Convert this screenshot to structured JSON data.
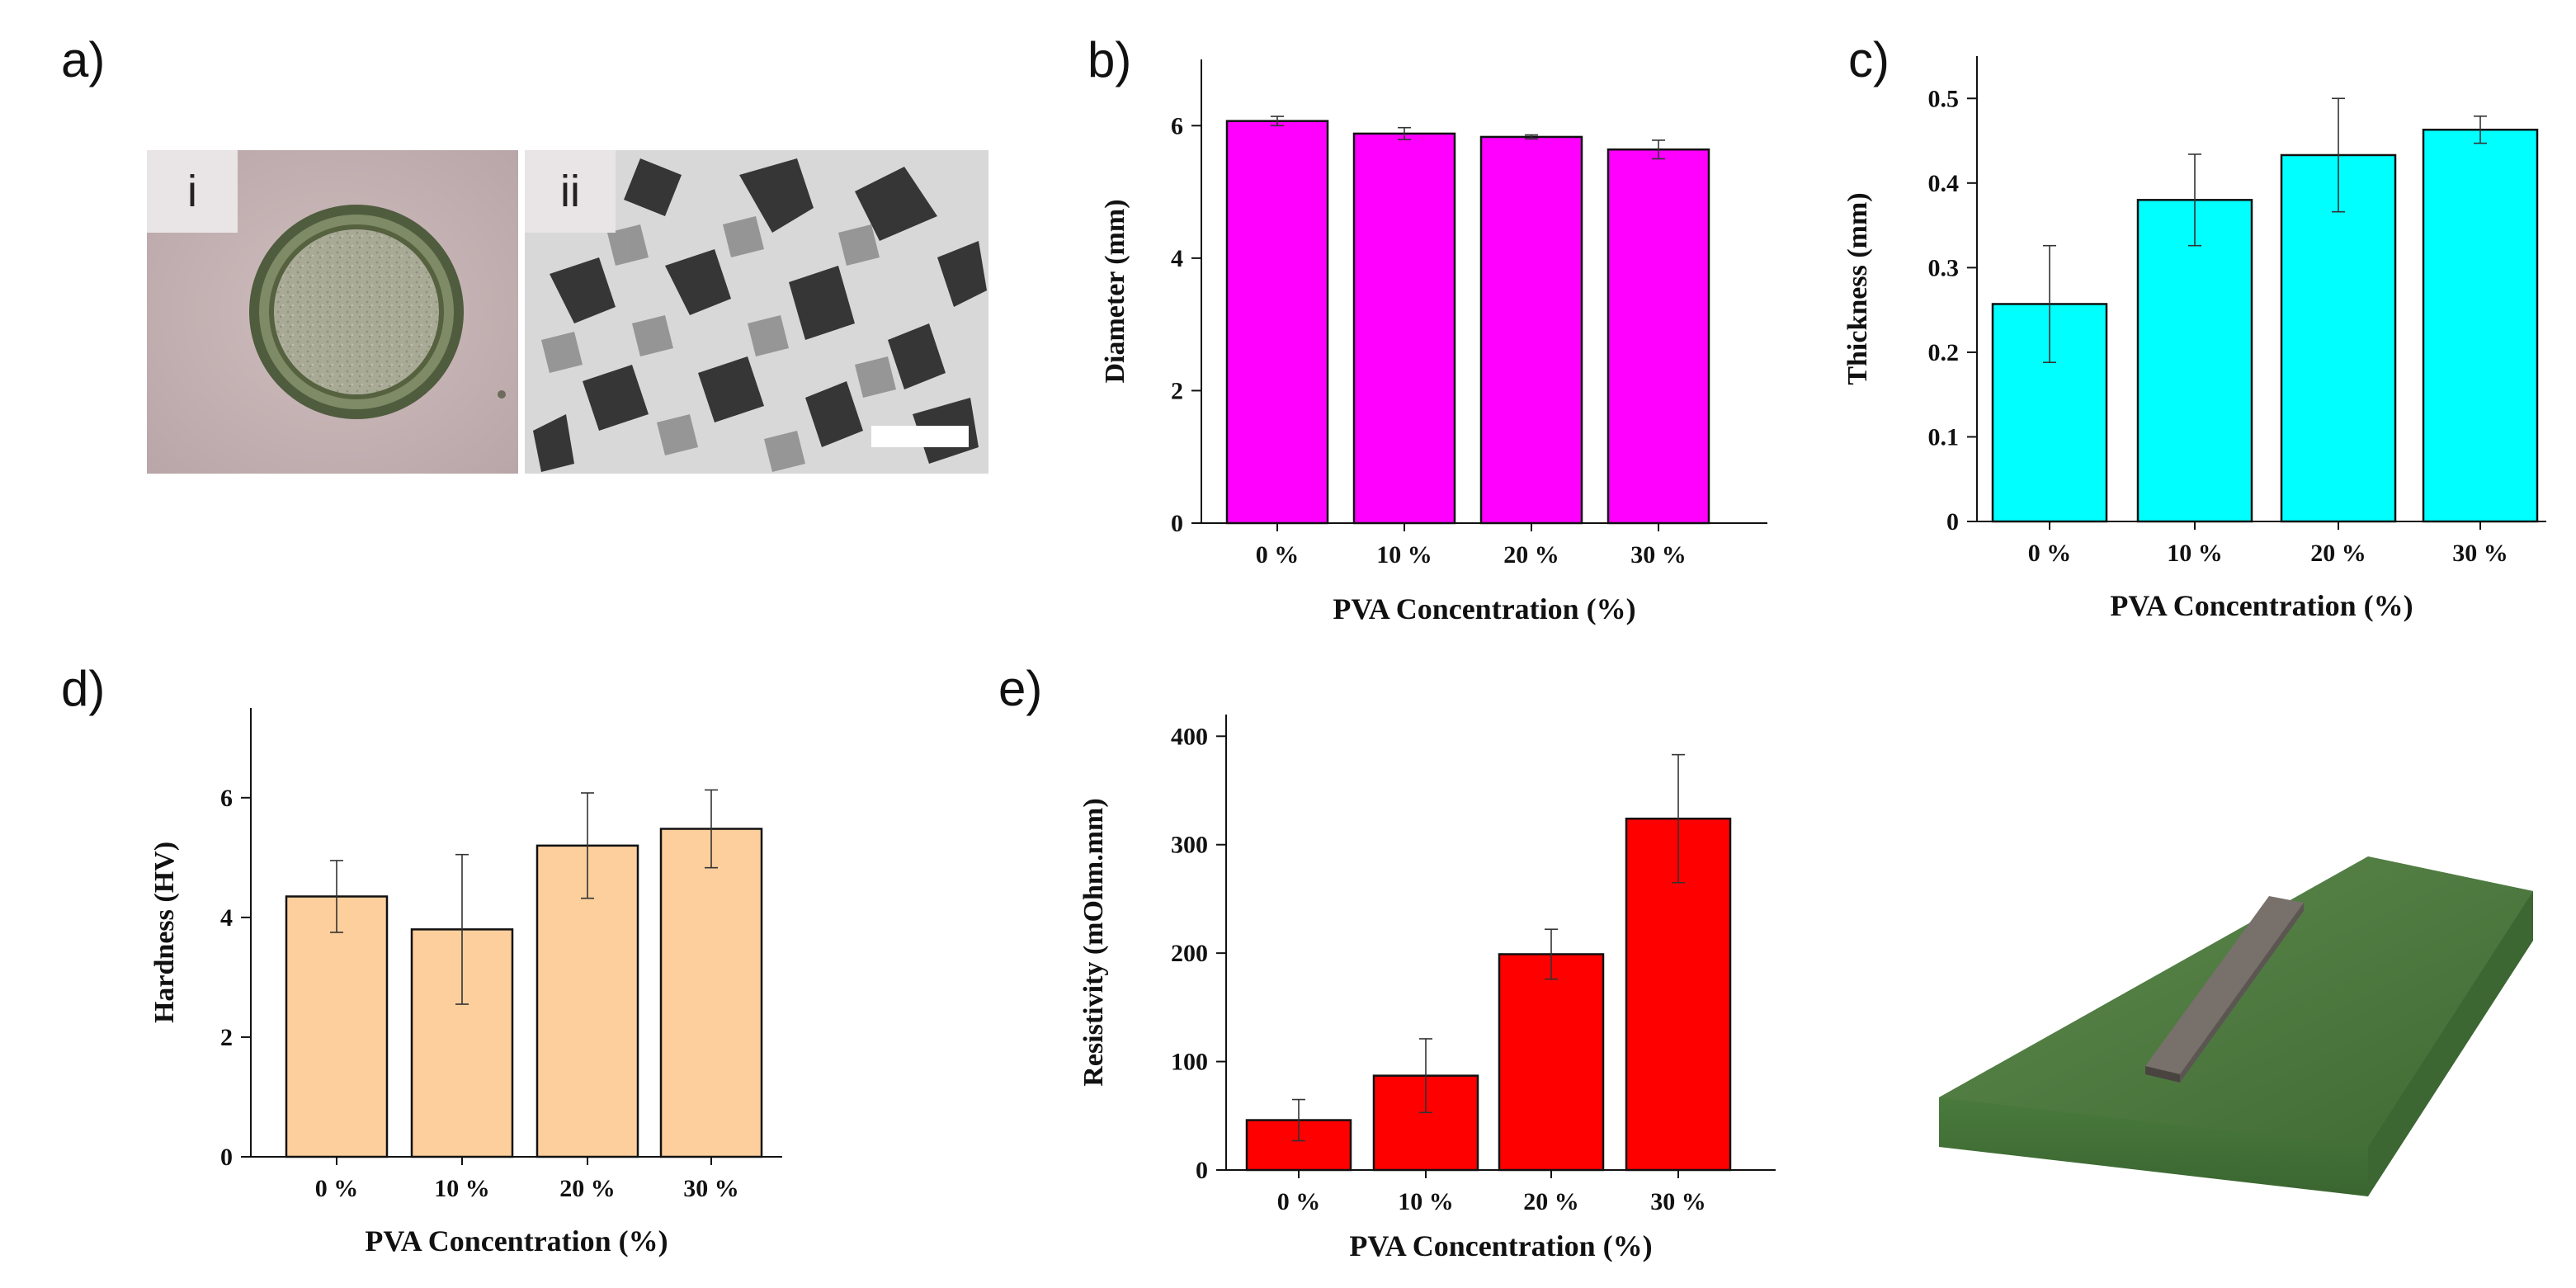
{
  "panel_labels": {
    "a": "a)",
    "b": "b)",
    "c": "c)",
    "d": "d)",
    "e": "e)"
  },
  "micrographs": {
    "i": "i",
    "ii": "ii"
  },
  "chart_data": [
    {
      "id": "b",
      "type": "bar",
      "title": "",
      "categories": [
        "0 %",
        "10 %",
        "20 %",
        "30 %"
      ],
      "values": [
        6.07,
        5.88,
        5.83,
        5.64
      ],
      "errors": [
        0.07,
        0.09,
        0.03,
        0.14
      ],
      "xlabel": "PVA Concentration (%)",
      "ylabel": "Diameter (mm)",
      "ylim": [
        0,
        7
      ],
      "yticks": [
        0,
        2,
        4,
        6
      ],
      "color": "#ff00ff",
      "grid": false
    },
    {
      "id": "c",
      "type": "bar",
      "title": "",
      "categories": [
        "0 %",
        "10 %",
        "20 %",
        "30 %"
      ],
      "values": [
        0.257,
        0.38,
        0.433,
        0.463
      ],
      "errors": [
        0.069,
        0.054,
        0.067,
        0.016
      ],
      "xlabel": "PVA Concentration (%)",
      "ylabel": "Thickness (mm)",
      "ylim": [
        0,
        0.55
      ],
      "yticks": [
        0,
        0.1,
        0.2,
        0.3,
        0.4,
        0.5
      ],
      "ytick_labels": [
        "0",
        "0.1",
        "0.2",
        "0.3",
        "0.4",
        "0.5"
      ],
      "color": "#00ffff",
      "grid": false
    },
    {
      "id": "d",
      "type": "bar",
      "title": "",
      "categories": [
        "0 %",
        "10 %",
        "20 %",
        "30 %"
      ],
      "values": [
        4.35,
        3.8,
        5.2,
        5.48
      ],
      "errors": [
        0.6,
        1.25,
        0.88,
        0.65
      ],
      "xlabel": "PVA Concentration (%)",
      "ylabel": "Hardness (HV)",
      "ylim": [
        0,
        7.5
      ],
      "yticks": [
        0,
        2,
        4,
        6
      ],
      "color": "#fdcf9c",
      "grid": false
    },
    {
      "id": "e",
      "type": "bar",
      "title": "",
      "categories": [
        "0 %",
        "10 %",
        "20 %",
        "30 %"
      ],
      "values": [
        46,
        87,
        199,
        324
      ],
      "errors": [
        19,
        34,
        23,
        59
      ],
      "xlabel": "PVA Concentration (%)",
      "ylabel": "Resistivity (mOhm.mm)",
      "ylim": [
        0,
        420
      ],
      "yticks": [
        0,
        100,
        200,
        300,
        400
      ],
      "color": "#ff0000",
      "grid": false
    }
  ]
}
